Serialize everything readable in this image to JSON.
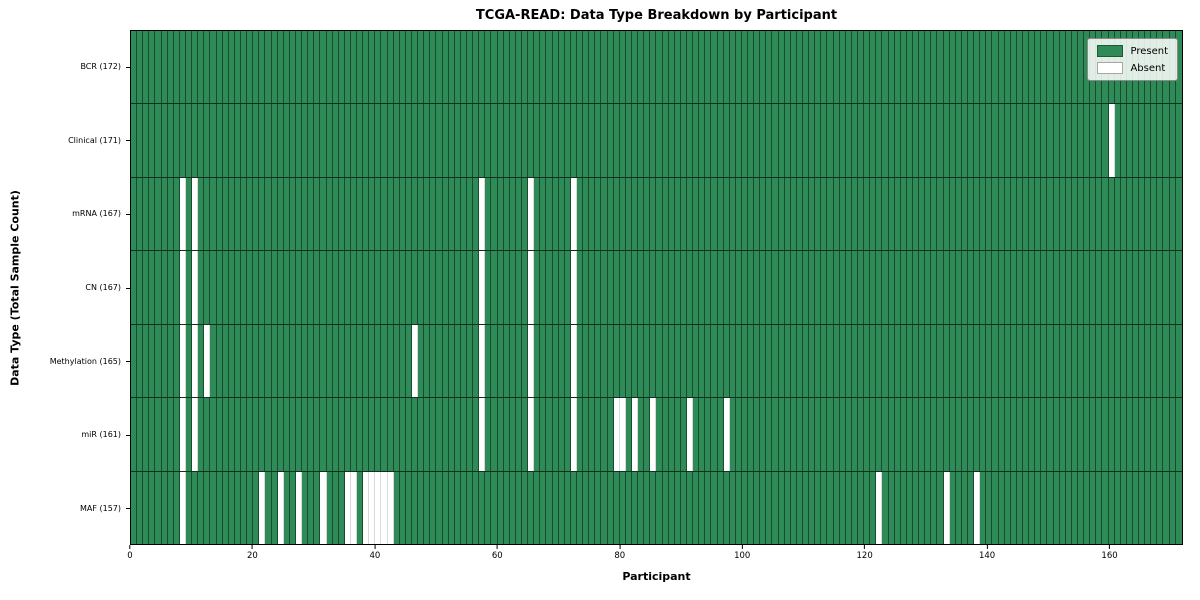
{
  "colors": {
    "present": "#2e8b57",
    "absent": "#ffffff",
    "row_divider": "#10301f",
    "plot_border": "#000000"
  },
  "legend": {
    "entries": [
      {
        "label": "Present",
        "color": "#2e8b57"
      },
      {
        "label": "Absent",
        "color": "#ffffff"
      }
    ]
  },
  "chart_data": {
    "type": "heatmap",
    "title": "TCGA-READ: Data Type Breakdown by Participant",
    "xlabel": "Participant",
    "ylabel": "Data Type (Total Sample Count)",
    "n_participants": 172,
    "x_ticks": [
      0,
      20,
      40,
      60,
      80,
      100,
      120,
      140,
      160
    ],
    "x_range": [
      0,
      172
    ],
    "grid": "cell-borders",
    "legend_position": "upper-right-inside",
    "cell_values": "1 = present (green), 0 = absent (white)",
    "rows": [
      {
        "label": "BCR (172)",
        "data_type": "BCR",
        "total_sample_count": 172,
        "absent_participants": []
      },
      {
        "label": "Clinical (171)",
        "data_type": "Clinical",
        "total_sample_count": 171,
        "absent_participants": [
          160
        ]
      },
      {
        "label": "mRNA (167)",
        "data_type": "mRNA",
        "total_sample_count": 167,
        "absent_participants": [
          8,
          10,
          57,
          65,
          72
        ]
      },
      {
        "label": "CN (167)",
        "data_type": "CN",
        "total_sample_count": 167,
        "absent_participants": [
          8,
          10,
          57,
          65,
          72
        ]
      },
      {
        "label": "Methylation (165)",
        "data_type": "Methylation",
        "total_sample_count": 165,
        "absent_participants": [
          8,
          10,
          12,
          46,
          57,
          65,
          72
        ]
      },
      {
        "label": "miR (161)",
        "data_type": "miR",
        "total_sample_count": 161,
        "absent_participants": [
          8,
          10,
          57,
          65,
          72,
          79,
          80,
          82,
          85,
          91,
          97
        ]
      },
      {
        "label": "MAF (157)",
        "data_type": "MAF",
        "total_sample_count": 157,
        "absent_participants": [
          8,
          21,
          24,
          27,
          31,
          35,
          36,
          38,
          39,
          40,
          41,
          42,
          122,
          133,
          138
        ]
      }
    ]
  }
}
